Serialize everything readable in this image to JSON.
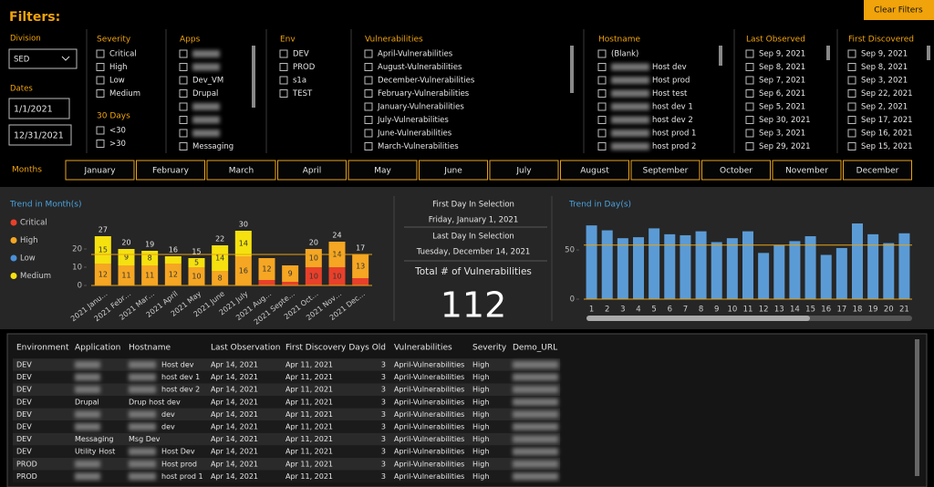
{
  "header": {
    "title": "Filters:",
    "clear_button": "Clear Filters"
  },
  "division": {
    "label": "Division",
    "value": "SED"
  },
  "dates": {
    "label": "Dates",
    "start": "1/1/2021",
    "end": "12/31/2021"
  },
  "slicers": [
    {
      "title": "Severity",
      "items": [
        "Critical",
        "High",
        "Low",
        "Medium"
      ]
    },
    {
      "title": "Apps",
      "items": [
        null,
        null,
        "Dev_VM",
        "Drupal",
        null,
        null,
        null,
        "Messaging"
      ]
    },
    {
      "title": "Env",
      "items": [
        "DEV",
        "PROD",
        "s1a",
        "TEST"
      ]
    },
    {
      "title": "Vulnerabilities",
      "items": [
        "April-Vulnerabilities",
        "August-Vulnerabilities",
        "December-Vulnerabilities",
        "February-Vulnerabilities",
        "January-Vulnerabilities",
        "July-Vulnerabilities",
        "June-Vulnerabilities",
        "March-Vulnerabilities"
      ]
    },
    {
      "title": "Hostname",
      "items": [
        "(Blank)",
        "Host dev",
        "Host prod",
        "Host test",
        "host dev 1",
        "host dev 2",
        "host prod 1",
        "host prod 2"
      ]
    },
    {
      "title": "Last Observed",
      "items": [
        "Sep 9, 2021",
        "Sep 8, 2021",
        "Sep 7, 2021",
        "Sep 6, 2021",
        "Sep 5, 2021",
        "Sep 30, 2021",
        "Sep 3, 2021",
        "Sep 29, 2021"
      ]
    },
    {
      "title": "First Discovered",
      "items": [
        "Sep 9, 2021",
        "Sep 8, 2021",
        "Sep 3, 2021",
        "Sep 22, 2021",
        "Sep 2, 2021",
        "Sep 17, 2021",
        "Sep 16, 2021",
        "Sep 15, 2021"
      ]
    }
  ],
  "days30": {
    "title": "30 Days",
    "items": [
      "<30",
      ">30"
    ]
  },
  "months": {
    "label": "Months",
    "items": [
      "January",
      "February",
      "March",
      "April",
      "May",
      "June",
      "July",
      "August",
      "September",
      "October",
      "November",
      "December"
    ]
  },
  "cards": {
    "first_day_label": "First Day In Selection",
    "first_day": "Friday, January 1, 2021",
    "last_day_label": "Last Day In Selection",
    "last_day": "Tuesday, December 14, 2021",
    "total_label": "Total # of Vulnerabilities",
    "total": 112
  },
  "chart_data": [
    {
      "type": "bar",
      "stacked": true,
      "title": "Trend in Month(s)",
      "categories": [
        "2021 Janu…",
        "2021 Febr…",
        "2021 Mar…",
        "2021 April",
        "2021 May",
        "2021 June",
        "2021 July",
        "2021 Aug…",
        "2021 Septe…",
        "2021 Oct…",
        "2021 Nov…",
        "2021 Dec…"
      ],
      "series": [
        {
          "name": "Critical",
          "color": "#e8402a",
          "values": [
            0,
            0,
            0,
            0,
            0,
            0,
            0,
            3,
            2,
            10,
            10,
            4
          ]
        },
        {
          "name": "High",
          "color": "#f5a623",
          "values": [
            12,
            11,
            11,
            12,
            10,
            8,
            16,
            12,
            9,
            10,
            14,
            13
          ]
        },
        {
          "name": "Low",
          "color": "#4a90d9",
          "values": [
            0,
            0,
            0,
            0,
            0,
            0,
            0,
            0,
            0,
            0,
            0,
            0
          ]
        },
        {
          "name": "Medium",
          "color": "#f5e10f",
          "values": [
            15,
            9,
            8,
            4,
            5,
            14,
            14,
            0,
            0,
            0,
            0,
            0
          ]
        }
      ],
      "total_labels": [
        27,
        20,
        19,
        16,
        15,
        22,
        30,
        null,
        null,
        20,
        24,
        17
      ],
      "ylim": [
        0,
        32
      ],
      "yticks": [
        0,
        10,
        20
      ],
      "reference_line": 17,
      "reference_color": "#e8a317"
    },
    {
      "type": "bar",
      "title": "Trend in Day(s)",
      "x": [
        1,
        2,
        3,
        4,
        5,
        6,
        7,
        8,
        9,
        10,
        11,
        12,
        13,
        14,
        15,
        16,
        17,
        18,
        19,
        20,
        21
      ],
      "values": [
        75,
        70,
        62,
        63,
        72,
        66,
        65,
        69,
        58,
        62,
        69,
        47,
        55,
        59,
        64,
        45,
        52,
        77,
        66,
        57,
        67
      ],
      "color": "#5b9bd5",
      "xlim": [
        0.5,
        21.5
      ],
      "ylim": [
        0,
        90
      ],
      "yticks": [
        0,
        50
      ],
      "reference_line": 55,
      "reference_color": "#e8a317"
    }
  ],
  "table": {
    "columns": [
      "Environment",
      "Application",
      "Hostname",
      "Last Observation",
      "First Discovery",
      "Days Old",
      "Vulnerabilities",
      "Severity",
      "Demo_URL"
    ],
    "rows": [
      [
        "DEV",
        null,
        "Host dev",
        "Apr 14, 2021",
        "Apr 11, 2021",
        3,
        "April-Vulnerabilities",
        "High",
        null
      ],
      [
        "DEV",
        null,
        "host dev 1",
        "Apr 14, 2021",
        "Apr 11, 2021",
        3,
        "April-Vulnerabilities",
        "High",
        null
      ],
      [
        "DEV",
        null,
        "host dev 2",
        "Apr 14, 2021",
        "Apr 11, 2021",
        3,
        "April-Vulnerabilities",
        "High",
        null
      ],
      [
        "DEV",
        "Drupal",
        "Drup host dev",
        "Apr 14, 2021",
        "Apr 11, 2021",
        3,
        "April-Vulnerabilities",
        "High",
        null
      ],
      [
        "DEV",
        null,
        "dev",
        "Apr 14, 2021",
        "Apr 11, 2021",
        3,
        "April-Vulnerabilities",
        "High",
        null
      ],
      [
        "DEV",
        null,
        "dev",
        "Apr 14, 2021",
        "Apr 11, 2021",
        3,
        "April-Vulnerabilities",
        "High",
        null
      ],
      [
        "DEV",
        "Messaging",
        "Msg Dev",
        "Apr 14, 2021",
        "Apr 11, 2021",
        3,
        "April-Vulnerabilities",
        "High",
        null
      ],
      [
        "DEV",
        "Utility Host",
        "Host Dev",
        "Apr 14, 2021",
        "Apr 11, 2021",
        3,
        "April-Vulnerabilities",
        "High",
        null
      ],
      [
        "PROD",
        null,
        "Host prod",
        "Apr 14, 2021",
        "Apr 11, 2021",
        3,
        "April-Vulnerabilities",
        "High",
        null
      ],
      [
        "PROD",
        null,
        "host prod 1",
        "Apr 14, 2021",
        "Apr 11, 2021",
        3,
        "April-Vulnerabilities",
        "High",
        null
      ]
    ]
  }
}
